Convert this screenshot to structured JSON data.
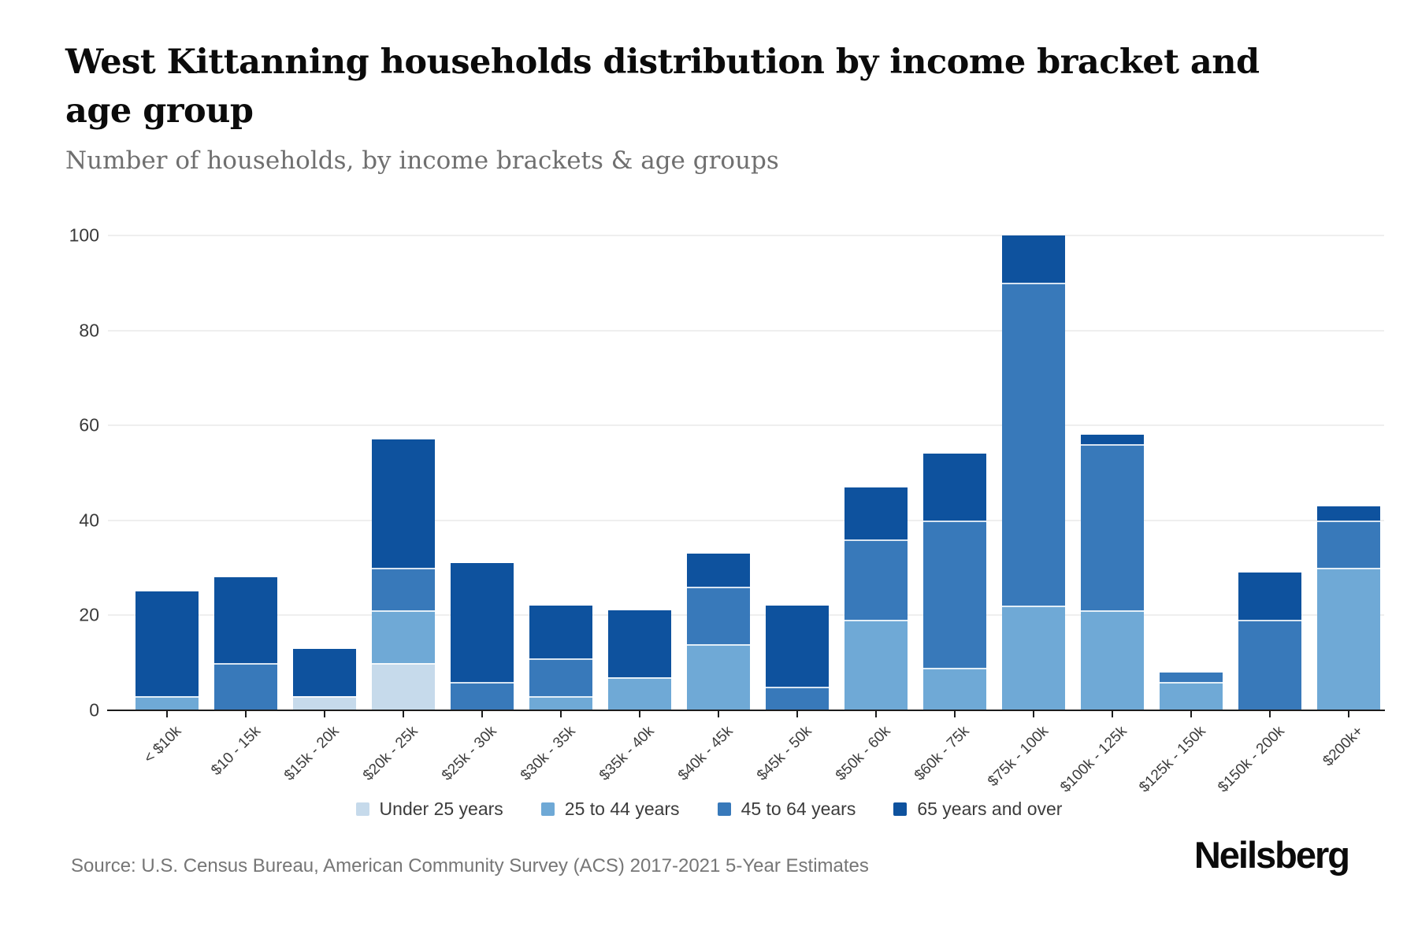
{
  "header": {
    "title": "West Kittanning households distribution by income bracket and age group",
    "subtitle": "Number of households, by income brackets & age groups"
  },
  "footer": {
    "source": "Source: U.S. Census Bureau, American Community Survey (ACS) 2017-2021 5-Year Estimates",
    "logo": "Neilsberg"
  },
  "chart_data": {
    "type": "bar",
    "stacked": true,
    "title": "West Kittanning households distribution by income bracket and age group",
    "xlabel": "",
    "ylabel": "Number of households",
    "ylim": [
      0,
      100
    ],
    "yticks": [
      0,
      20,
      40,
      60,
      80,
      100
    ],
    "grid": true,
    "legend_position": "bottom",
    "categories": [
      "< $10k",
      "$10 - 15k",
      "$15k - 20k",
      "$20k - 25k",
      "$25k - 30k",
      "$30k - 35k",
      "$35k - 40k",
      "$40k - 45k",
      "$45k - 50k",
      "$50k - 60k",
      "$60k - 75k",
      "$75k - 100k",
      "$100k - 125k",
      "$125k - 150k",
      "$150k - 200k",
      "$200k+"
    ],
    "series": [
      {
        "name": "Under 25 years",
        "color": "#c6daeb",
        "values": [
          0,
          0,
          3,
          10,
          0,
          0,
          0,
          0,
          0,
          0,
          0,
          0,
          0,
          0,
          0,
          0
        ]
      },
      {
        "name": "25 to 44 years",
        "color": "#6fa9d6",
        "values": [
          3,
          0,
          0,
          11,
          0,
          3,
          7,
          14,
          0,
          19,
          9,
          22,
          21,
          6,
          0,
          30
        ]
      },
      {
        "name": "45 to 64 years",
        "color": "#3879ba",
        "values": [
          0,
          10,
          0,
          9,
          6,
          8,
          0,
          12,
          5,
          17,
          31,
          68,
          35,
          2,
          19,
          10
        ]
      },
      {
        "name": "65 years and over",
        "color": "#0e529e",
        "values": [
          22,
          18,
          10,
          27,
          25,
          11,
          14,
          7,
          17,
          11,
          14,
          10,
          2,
          0,
          10,
          3
        ]
      }
    ]
  }
}
